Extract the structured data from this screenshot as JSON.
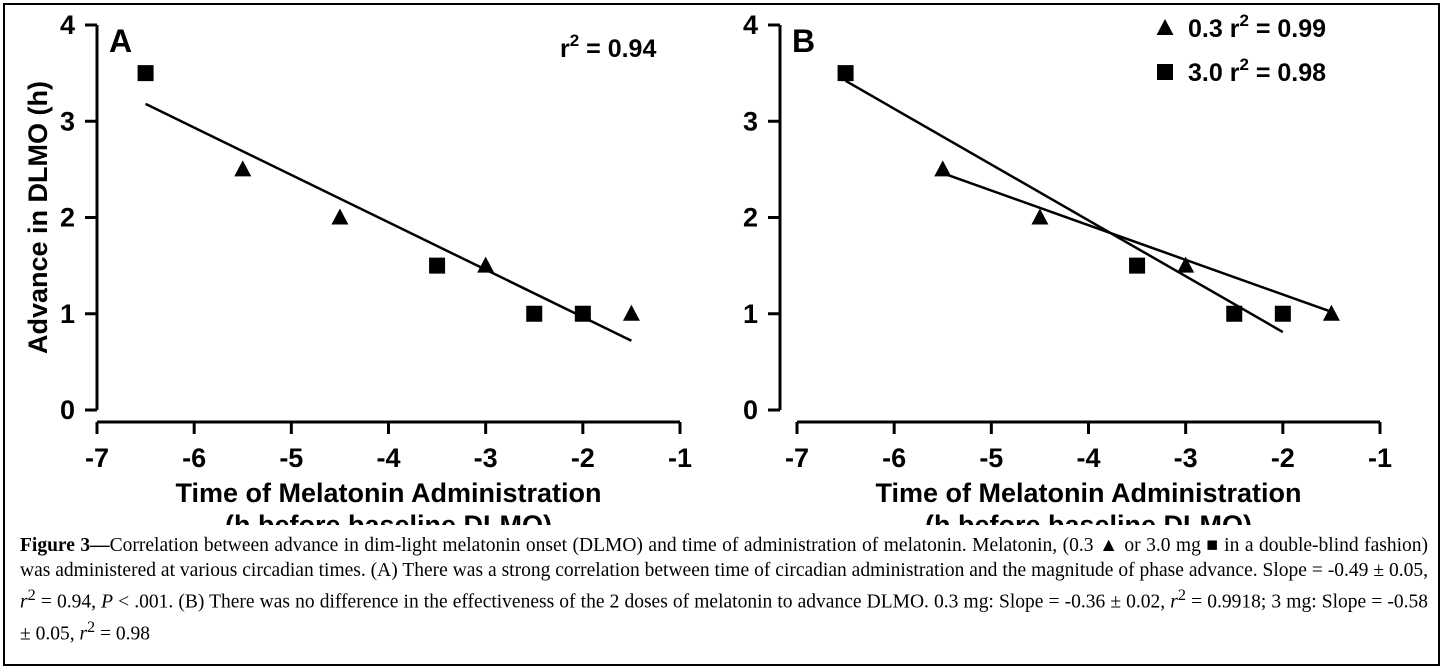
{
  "chart_data": [
    {
      "panel": "A",
      "type": "scatter",
      "xlabel_lines": [
        "Time of Melatonin Administration",
        "(h before baseline DLMO)"
      ],
      "ylabel": "Advance in DLMO (h)",
      "xlim": [
        -7,
        -1
      ],
      "ylim": [
        0,
        4
      ],
      "xticks": [
        "-7",
        "-6",
        "-5",
        "-4",
        "-3",
        "-2",
        "-1"
      ],
      "yticks": [
        "0",
        "1",
        "2",
        "3",
        "4"
      ],
      "annotation": "r² = 0.94",
      "series": [
        {
          "marker": "triangle",
          "x": [
            -5.5,
            -4.5,
            -3.0,
            -1.5
          ],
          "y": [
            2.5,
            2.0,
            1.5,
            1.0
          ]
        },
        {
          "marker": "square",
          "x": [
            -6.5,
            -3.5,
            -2.5,
            -2.0
          ],
          "y": [
            3.5,
            1.5,
            1.0,
            1.0
          ]
        }
      ],
      "fits": [
        {
          "x": [
            -6.5,
            -1.5
          ],
          "y": [
            3.18,
            0.72
          ]
        }
      ]
    },
    {
      "panel": "B",
      "type": "scatter",
      "xlabel_lines": [
        "Time of Melatonin Administration",
        "(h before baseline DLMO)"
      ],
      "ylabel": "",
      "xlim": [
        -7,
        -1
      ],
      "ylim": [
        0,
        4
      ],
      "xticks": [
        "-7",
        "-6",
        "-5",
        "-4",
        "-3",
        "-2",
        "-1"
      ],
      "yticks": [
        "0",
        "1",
        "2",
        "3",
        "4"
      ],
      "series": [
        {
          "name": "0.3 r² = 0.99",
          "marker": "triangle",
          "x": [
            -5.5,
            -4.5,
            -3.0,
            -1.5
          ],
          "y": [
            2.5,
            2.0,
            1.5,
            1.0
          ]
        },
        {
          "name": "3.0 r² = 0.98",
          "marker": "square",
          "x": [
            -6.5,
            -3.5,
            -2.5,
            -2.0
          ],
          "y": [
            3.5,
            1.5,
            1.0,
            1.0
          ]
        }
      ],
      "fits": [
        {
          "x": [
            -5.5,
            -1.5
          ],
          "y": [
            2.46,
            1.02
          ]
        },
        {
          "x": [
            -6.5,
            -2.0
          ],
          "y": [
            3.42,
            0.81
          ]
        }
      ]
    }
  ],
  "caption": {
    "label": "Figure 3—",
    "text_1": "Correlation between advance in dim-light melatonin onset (DLMO) and time of administration of melatonin. Melatonin, (0.3 ▲ or 3.0 mg ■ in a double-blind fashion) was administered at various circadian times. (A) There was a strong correlation between time of circadian administration and the magnitude of phase advance. Slope = -0.49 ± 0.05, ",
    "r_1": "r",
    "sup_1": "2",
    "text_2": " = 0.94, ",
    "p_1": "P",
    "text_3": " < .001. (B) There was no difference in the effectiveness of the 2 doses of melatonin to advance DLMO. 0.3 mg: Slope = -0.36 ± 0.02, ",
    "r_2": "r",
    "sup_2": "2",
    "text_4": " = 0.9918; 3 mg: Slope = -0.58 ± 0.05, ",
    "r_3": "r",
    "sup_3": "2",
    "text_5": " = 0.98"
  }
}
